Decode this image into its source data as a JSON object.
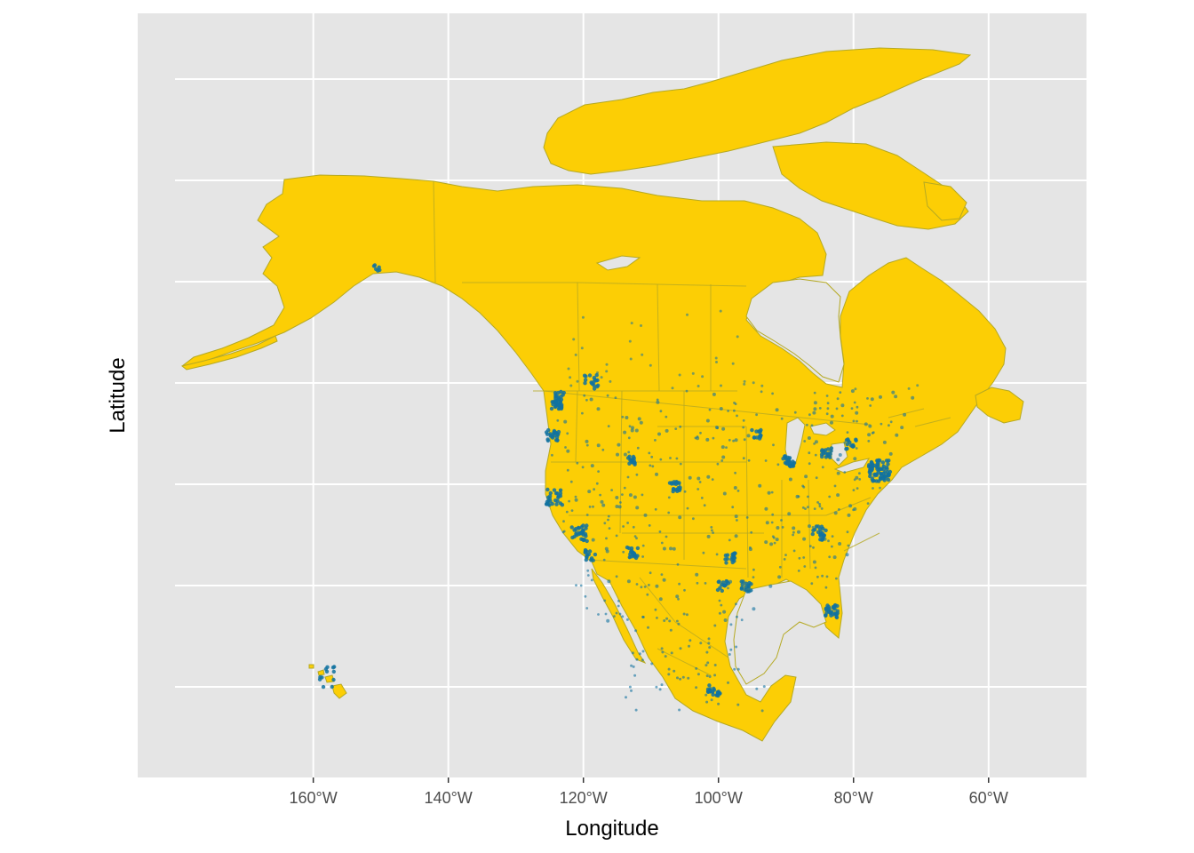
{
  "chart_data": {
    "type": "scatter",
    "xlabel": "Longitude",
    "ylabel": "Latitude",
    "x_ticks": [
      "160°W",
      "140°W",
      "120°W",
      "100°W",
      "80°W",
      "60°W"
    ],
    "xlim": [
      -186,
      -45.5
    ],
    "grid": true,
    "colors": {
      "panel_background": "#e5e5e5",
      "grid": "#ffffff",
      "land_fill": "#fcce05",
      "land_border": "#b5a923",
      "points": "#1072a0"
    },
    "base_layer": "North America land polygons with state / province borders (USA, Canada, Mexico)",
    "point_clusters": [
      {
        "region": "Puget Sound / Seattle",
        "lon": -122.3,
        "lat": 47.6
      },
      {
        "region": "Portland",
        "lon": -122.7,
        "lat": 45.5
      },
      {
        "region": "San Francisco Bay",
        "lon": -122.2,
        "lat": 37.7
      },
      {
        "region": "Los Angeles",
        "lon": -118.2,
        "lat": 34.0
      },
      {
        "region": "San Diego",
        "lon": -117.1,
        "lat": 32.7
      },
      {
        "region": "Phoenix",
        "lon": -112.0,
        "lat": 33.5
      },
      {
        "region": "Salt Lake City",
        "lon": -111.9,
        "lat": 40.7
      },
      {
        "region": "Denver / Front Range",
        "lon": -104.9,
        "lat": 39.7
      },
      {
        "region": "Dallas",
        "lon": -96.8,
        "lat": 32.8
      },
      {
        "region": "Houston",
        "lon": -95.4,
        "lat": 29.8
      },
      {
        "region": "San Antonio / Austin",
        "lon": -98.0,
        "lat": 29.9
      },
      {
        "region": "Minneapolis",
        "lon": -93.3,
        "lat": 45.0
      },
      {
        "region": "Chicago",
        "lon": -87.7,
        "lat": 41.9
      },
      {
        "region": "Detroit",
        "lon": -83.1,
        "lat": 42.3
      },
      {
        "region": "Atlanta",
        "lon": -84.4,
        "lat": 33.7
      },
      {
        "region": "Florida peninsula",
        "lon": -81.5,
        "lat": 27.5
      },
      {
        "region": "Northeast corridor",
        "lon": -74.5,
        "lat": 40.5
      },
      {
        "region": "Toronto",
        "lon": -79.4,
        "lat": 43.7
      },
      {
        "region": "Mexico City",
        "lon": -99.1,
        "lat": 19.4
      },
      {
        "region": "Calgary / Edmonton",
        "lon": -113.8,
        "lat": 52.0
      },
      {
        "region": "Vancouver",
        "lon": -123.1,
        "lat": 49.3
      },
      {
        "region": "Hawaii",
        "lon": -157.5,
        "lat": 20.8
      },
      {
        "region": "Anchorage",
        "lon": -149.9,
        "lat": 61.2
      }
    ]
  }
}
